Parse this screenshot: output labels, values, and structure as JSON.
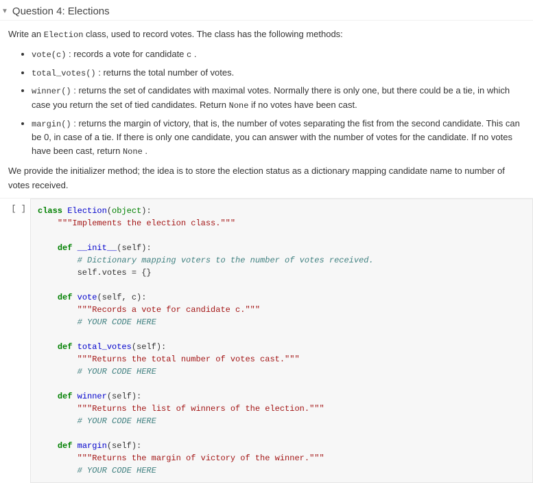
{
  "header": {
    "caret": "▼",
    "title": "Question 4: Elections"
  },
  "intro": {
    "prefix": "Write an ",
    "code": "Election",
    "suffix": " class, used to record votes. The class has the following methods:"
  },
  "methods": [
    {
      "sig": "vote(c)",
      "mid": " : records a vote for candidate ",
      "code2": "c",
      "suffix": " ."
    },
    {
      "sig": "total_votes()",
      "mid": " : returns the total number of votes.",
      "code2": "",
      "suffix": ""
    },
    {
      "sig": "winner()",
      "mid": " : returns the set of candidates with maximal votes. Normally there is only one, but there could be a tie, in which case you return the set of tied candidates. Return ",
      "code2": "None",
      "suffix": " if no votes have been cast."
    },
    {
      "sig": "margin()",
      "mid": " : returns the margin of victory, that is, the number of votes separating the fist from the second candidate. This can be 0, in case of a tie. If there is only one candidate, you can answer with the number of votes for the candidate. If no votes have been cast, return ",
      "code2": "None",
      "suffix": " ."
    }
  ],
  "outro": "We provide the initializer method; the idea is to store the election status as a dictionary mapping candidate name to number of votes received.",
  "cell": {
    "prompt": "[ ]",
    "tokens": {
      "class": "class",
      "classname": "Election",
      "objbase": "object",
      "def": "def",
      "self": "self",
      "init": "__init__",
      "vote": "vote",
      "total": "total_votes",
      "winner": "winner",
      "margin": "margin",
      "doc_class": "\"\"\"Implements the election class.\"\"\"",
      "cmt_dict": "# Dictionary mapping voters to the number of votes received.",
      "init_body": "self.votes = {}",
      "doc_vote": "\"\"\"Records a vote for candidate c.\"\"\"",
      "doc_total": "\"\"\"Returns the total number of votes cast.\"\"\"",
      "doc_winner": "\"\"\"Returns the list of winners of the election.\"\"\"",
      "doc_margin": "\"\"\"Returns the margin of victory of the winner.\"\"\"",
      "your_code": "# YOUR CODE HERE"
    }
  }
}
